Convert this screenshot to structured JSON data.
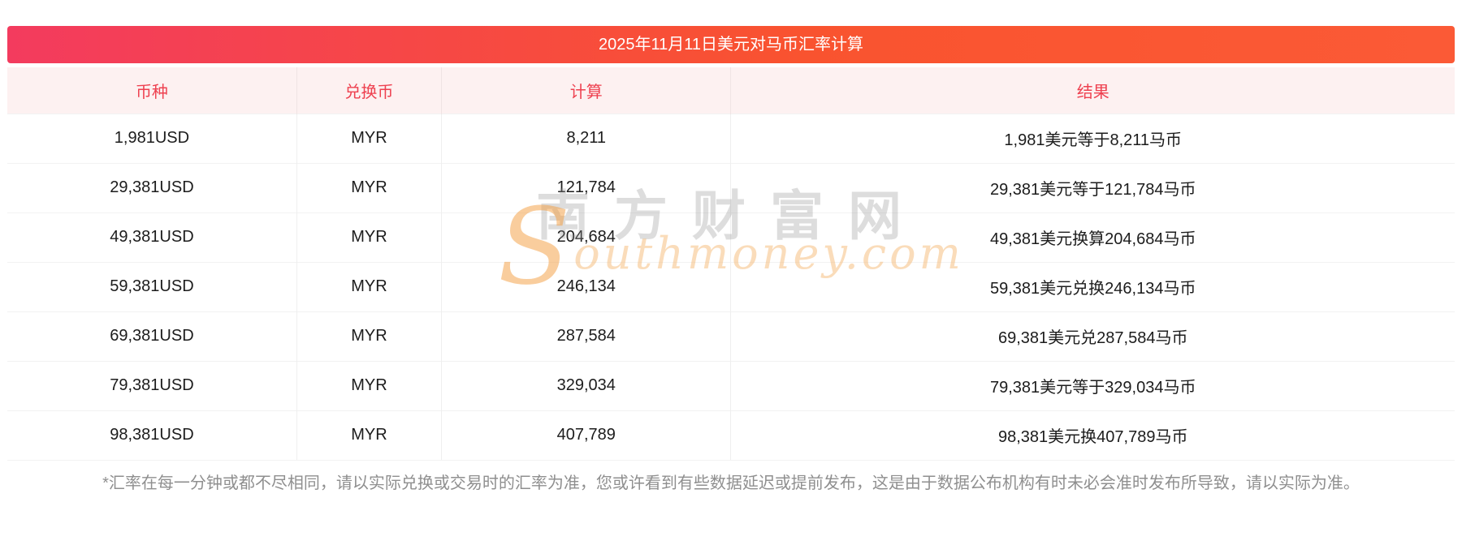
{
  "header": {
    "title": "2025年11月11日美元对马币汇率计算",
    "gradient_left": "#f33b5e",
    "gradient_right": "#fb5a36"
  },
  "table": {
    "columns": [
      "币种",
      "兑换币",
      "计算",
      "结果"
    ],
    "header_text_color": "#ee4150",
    "header_bg_color": "#fdf1f1",
    "rows": [
      {
        "currency": "1,981USD",
        "exchange": "MYR",
        "calc": "8,211",
        "result": "1,981美元等于8,211马币"
      },
      {
        "currency": "29,381USD",
        "exchange": "MYR",
        "calc": "121,784",
        "result": "29,381美元等于121,784马币"
      },
      {
        "currency": "49,381USD",
        "exchange": "MYR",
        "calc": "204,684",
        "result": "49,381美元换算204,684马币"
      },
      {
        "currency": "59,381USD",
        "exchange": "MYR",
        "calc": "246,134",
        "result": "59,381美元兑换246,134马币"
      },
      {
        "currency": "69,381USD",
        "exchange": "MYR",
        "calc": "287,584",
        "result": "69,381美元兑287,584马币"
      },
      {
        "currency": "79,381USD",
        "exchange": "MYR",
        "calc": "329,034",
        "result": "79,381美元等于329,034马币"
      },
      {
        "currency": "98,381USD",
        "exchange": "MYR",
        "calc": "407,789",
        "result": "98,381美元换407,789马币"
      }
    ]
  },
  "watermark": {
    "cn": "南方财富网",
    "en_initial": "S",
    "en_rest": "outhmoney.com"
  },
  "footer": {
    "note": "*汇率在每一分钟或都不尽相同，请以实际兑换或交易时的汇率为准，您或许看到有些数据延迟或提前发布，这是由于数据公布机构有时未必会准时发布所导致，请以实际为准。"
  }
}
